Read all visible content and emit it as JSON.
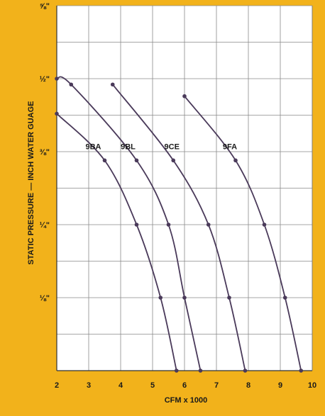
{
  "chart_data": {
    "type": "line",
    "xlabel": "CFM x 1000",
    "ylabel": "STATIC PRESSURE — INCH WATER GUAGE",
    "x_ticks": [
      "2",
      "3",
      "4",
      "5",
      "6",
      "7",
      "8",
      "9",
      "10"
    ],
    "x_tick_values": [
      2,
      3,
      4,
      5,
      6,
      7,
      8,
      9,
      10
    ],
    "y_ticks": [
      "⅛\"",
      "¼\"",
      "⅜\"",
      "½\"",
      "⅝\""
    ],
    "y_tick_values": [
      0.125,
      0.25,
      0.375,
      0.5,
      0.625
    ],
    "xlim": [
      2,
      10
    ],
    "ylim": [
      0,
      0.625
    ],
    "grid": true,
    "series": [
      {
        "name": "9BA",
        "points": [
          [
            2.0,
            0.44
          ],
          [
            3.5,
            0.36
          ],
          [
            4.5,
            0.25
          ],
          [
            5.25,
            0.125
          ],
          [
            5.75,
            0.0
          ]
        ]
      },
      {
        "name": "9BL",
        "points": [
          [
            2.0,
            0.5
          ],
          [
            2.45,
            0.49
          ],
          [
            4.5,
            0.36
          ],
          [
            5.5,
            0.25
          ],
          [
            6.0,
            0.125
          ],
          [
            6.5,
            0.0
          ]
        ]
      },
      {
        "name": "9CE",
        "points": [
          [
            3.75,
            0.49
          ],
          [
            5.65,
            0.36
          ],
          [
            6.75,
            0.25
          ],
          [
            7.4,
            0.125
          ],
          [
            7.9,
            0.0
          ]
        ]
      },
      {
        "name": "9FA",
        "points": [
          [
            6.0,
            0.47
          ],
          [
            7.6,
            0.36
          ],
          [
            8.5,
            0.25
          ],
          [
            9.15,
            0.125
          ],
          [
            9.65,
            0.0
          ]
        ]
      }
    ],
    "series_labels_text": [
      "9BA",
      "9BL",
      "9CE",
      "9FA"
    ]
  }
}
